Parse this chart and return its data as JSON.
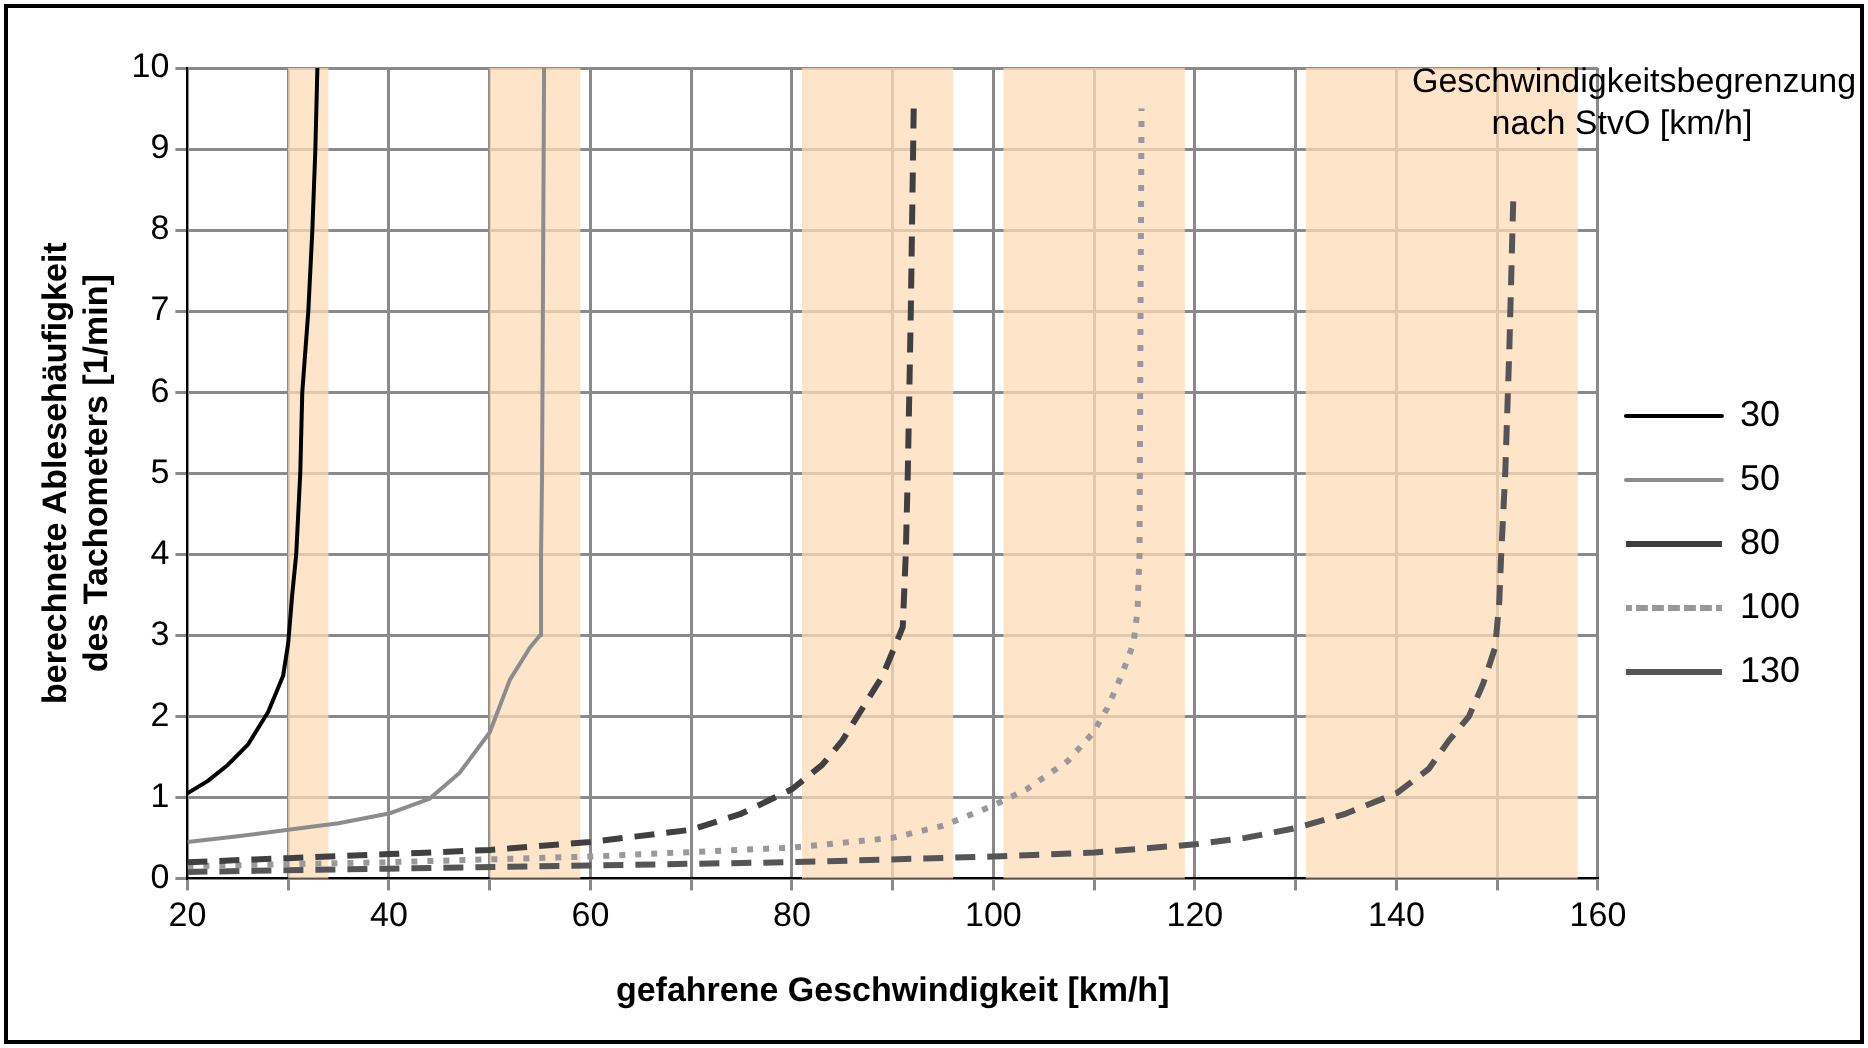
{
  "chart_data": {
    "type": "line",
    "xlabel": "gefahrene Geschwindigkeit [km/h]",
    "ylabel": "berechnete Ablesehäufigkeit\ndes Tachometers [1/min]",
    "legend_title": "Geschwindigkeitsbegrenzung nach StvO [km/h]",
    "legend": "right",
    "grid": true,
    "marker": "none",
    "xlim": [
      20,
      160
    ],
    "xticks": [
      20,
      {
        "value": 30,
        "label": null
      },
      40,
      {
        "value": 50,
        "label": null
      },
      60,
      {
        "value": 70,
        "label": null
      },
      80,
      {
        "value": 90,
        "label": null
      },
      100,
      {
        "value": 110,
        "label": null
      },
      120,
      {
        "value": 130,
        "label": null
      },
      140,
      {
        "value": 150,
        "label": null
      },
      160
    ],
    "ylim": [
      0,
      10
    ],
    "yticks": [
      0,
      1,
      2,
      3,
      4,
      5,
      6,
      7,
      8,
      9,
      10
    ],
    "bands": [
      {
        "axis": "x",
        "from": 30,
        "to": 34,
        "color": "#fddcb8"
      },
      {
        "axis": "x",
        "from": 50,
        "to": 59,
        "color": "#fddcb8"
      },
      {
        "axis": "x",
        "from": 81,
        "to": 96,
        "color": "#fddcb8"
      },
      {
        "axis": "x",
        "from": 101,
        "to": 119,
        "color": "#fddcb8"
      },
      {
        "axis": "x",
        "from": 131,
        "to": 158,
        "color": "#fddcb8"
      }
    ],
    "series": [
      {
        "name": "30",
        "color": "#000000",
        "line_style": "solid",
        "x": [
          20,
          22,
          24,
          26,
          28,
          29,
          29.5,
          30,
          30.4,
          30.8,
          31.2,
          31.4,
          32,
          32.4,
          32.7,
          32.9
        ],
        "values": [
          1.05,
          1.2,
          1.4,
          1.65,
          2.05,
          2.35,
          2.5,
          2.9,
          3.5,
          4,
          5,
          6,
          7,
          8,
          9,
          10
        ]
      },
      {
        "name": "50",
        "color": "#8c8c8c",
        "line_style": "solid",
        "x": [
          20,
          25,
          30,
          35,
          40,
          44,
          47,
          50,
          52,
          54,
          55,
          55.1,
          55.2,
          55.4
        ],
        "values": [
          0.45,
          0.52,
          0.6,
          0.68,
          0.8,
          0.98,
          1.3,
          1.8,
          2.45,
          2.85,
          3,
          4,
          5,
          10
        ]
      },
      {
        "name": "80",
        "color": "#404040",
        "line_style": "dashed",
        "x": [
          20,
          30,
          40,
          50,
          60,
          70,
          75,
          80,
          83,
          85,
          87,
          89,
          90,
          91,
          91.3,
          91.5,
          91.8,
          92.1
        ],
        "values": [
          0.2,
          0.25,
          0.3,
          0.35,
          0.45,
          0.6,
          0.8,
          1.1,
          1.4,
          1.7,
          2.1,
          2.5,
          2.8,
          3.1,
          4,
          5,
          7,
          9.6
        ]
      },
      {
        "name": "100",
        "color": "#999999",
        "line_style": "dotted",
        "x": [
          20,
          40,
          60,
          80,
          90,
          95,
          100,
          103.3,
          107.4,
          109.9,
          111.3,
          112.7,
          113.9,
          114.3,
          114.5,
          114.6,
          114.7
        ],
        "values": [
          0.15,
          0.2,
          0.27,
          0.38,
          0.5,
          0.65,
          0.9,
          1.1,
          1.45,
          1.8,
          2.1,
          2.5,
          2.9,
          3.3,
          4,
          7,
          9.5
        ]
      },
      {
        "name": "130",
        "color": "#555555",
        "line_style": "dashed",
        "x": [
          20,
          40,
          60,
          80,
          100,
          110,
          120,
          125,
          130,
          135,
          140,
          143.2,
          145.2,
          147.2,
          148.6,
          149.8,
          150.2,
          150.4,
          150.8,
          151.2,
          151.6
        ],
        "values": [
          0.08,
          0.12,
          0.16,
          0.2,
          0.27,
          0.32,
          0.42,
          0.5,
          0.62,
          0.8,
          1.05,
          1.35,
          1.7,
          2,
          2.4,
          2.85,
          3.4,
          4,
          5,
          6.5,
          8.4
        ]
      }
    ]
  }
}
